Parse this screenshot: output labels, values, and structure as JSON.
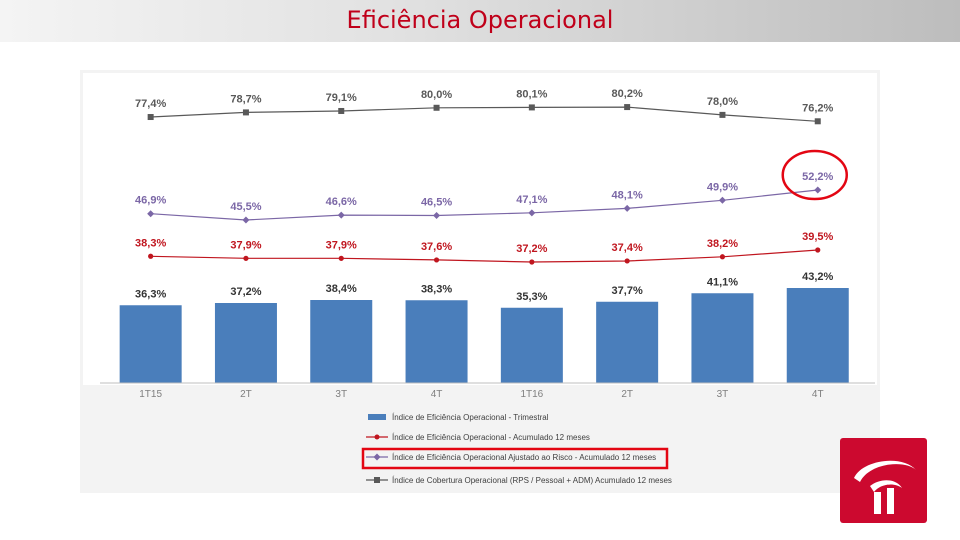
{
  "slide": {
    "title": "Eficiência Operacional"
  },
  "colors": {
    "bar": "#4a7ebb",
    "adm": "#595959",
    "adjusted": "#7b67a6",
    "accumulated": "#c0161f",
    "highlight": "#e30613",
    "logo": "#cc092f"
  },
  "chart_data": {
    "type": "bar",
    "categories": [
      "1T15",
      "2T",
      "3T",
      "4T",
      "1T16",
      "2T",
      "3T",
      "4T"
    ],
    "series": [
      {
        "name": "Índice de Eficiência Operacional - Trimestral",
        "type": "bar",
        "values": [
          36.3,
          37.2,
          38.4,
          38.3,
          35.3,
          37.7,
          41.1,
          43.2
        ],
        "labels": [
          "36,3%",
          "37,2%",
          "38,4%",
          "38,3%",
          "35,3%",
          "37,7%",
          "41,1%",
          "43,2%"
        ]
      },
      {
        "name": "Índice de Eficiência Operacional - Acumulado 12 meses",
        "type": "line",
        "values": [
          38.3,
          37.9,
          37.9,
          37.6,
          37.2,
          37.4,
          38.2,
          39.5
        ],
        "labels": [
          "38,3%",
          "37,9%",
          "37,9%",
          "37,6%",
          "37,2%",
          "37,4%",
          "38,2%",
          "39,5%"
        ]
      },
      {
        "name": "Índice de Eficiência Operacional Ajustado ao Risco - Acumulado 12 meses",
        "type": "line",
        "values": [
          46.9,
          45.5,
          46.6,
          46.5,
          47.1,
          48.1,
          49.9,
          52.2
        ],
        "labels": [
          "46,9%",
          "45,5%",
          "46,6%",
          "46,5%",
          "47,1%",
          "48,1%",
          "49,9%",
          "52,2%"
        ]
      },
      {
        "name": "Índice de Cobertura Operacional (RPS / Pessoal + ADM) Acumulado 12 meses",
        "type": "line",
        "values": [
          77.4,
          78.7,
          79.1,
          80.0,
          80.1,
          80.2,
          78.0,
          76.2
        ],
        "labels": [
          "77,4%",
          "78,7%",
          "79,1%",
          "80,0%",
          "80,1%",
          "80,2%",
          "78,0%",
          "76,2%"
        ]
      }
    ],
    "highlights": [
      "last point of adjusted series (52,2%)",
      "adjusted series legend entry"
    ]
  }
}
